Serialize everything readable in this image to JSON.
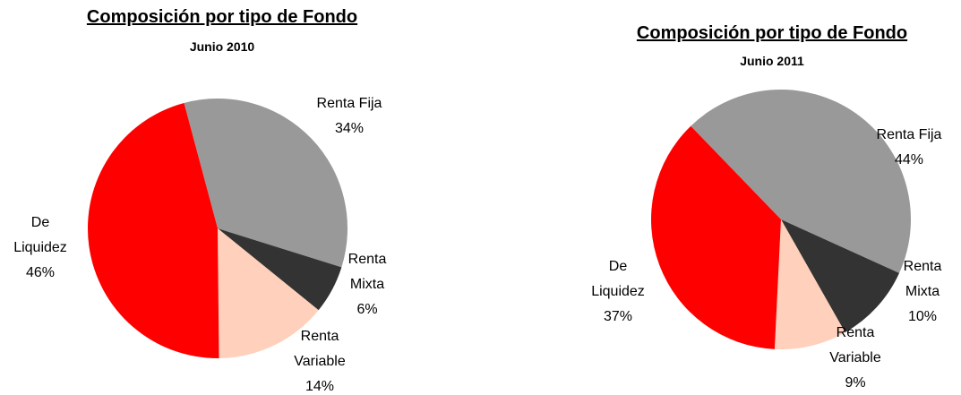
{
  "chart_data": [
    {
      "type": "pie",
      "title": "Composición por tipo de Fondo",
      "subtitle": "Junio 2010",
      "categories": [
        "Renta Fija",
        "Renta Mixta",
        "Renta Variable",
        "De Liquidez"
      ],
      "values": [
        34,
        6,
        14,
        46
      ],
      "value_labels": [
        "34%",
        "6%",
        "14%",
        "46%"
      ],
      "colors": [
        "#999999",
        "#333333",
        "#ffd0bb",
        "#ff0000"
      ]
    },
    {
      "type": "pie",
      "title": "Composición por tipo de Fondo",
      "subtitle": "Junio 2011",
      "categories": [
        "Renta Fija",
        "Renta Mixta",
        "Renta Variable",
        "De Liquidez"
      ],
      "values": [
        44,
        10,
        9,
        37
      ],
      "value_labels": [
        "44%",
        "10%",
        "9%",
        "37%"
      ],
      "colors": [
        "#999999",
        "#333333",
        "#ffd0bb",
        "#ff0000"
      ]
    }
  ]
}
